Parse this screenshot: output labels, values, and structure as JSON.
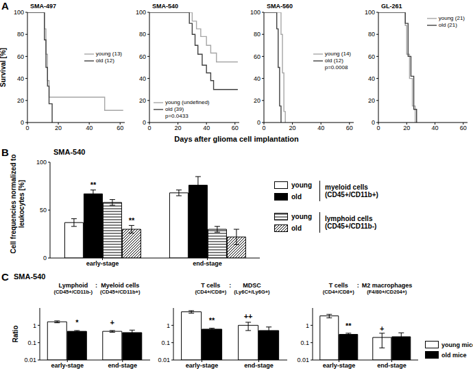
{
  "chart_data": [
    {
      "type": "line",
      "panel_label": "A",
      "title": "SMA-497",
      "y_label": "Survival [%]",
      "x_label": "Days after glioma cell implantation",
      "line_style": "step",
      "legend": "center right",
      "xlim": [
        0,
        63
      ],
      "xticks": [
        0,
        20,
        40,
        60
      ],
      "ylim": [
        0,
        100
      ],
      "yticks": [
        0,
        20,
        40,
        60,
        80,
        100
      ],
      "series": [
        {
          "name": "young (13)",
          "color": "#a6a6a6",
          "x": [
            0,
            11,
            12,
            13,
            14,
            50,
            62
          ],
          "values": [
            100,
            85,
            62,
            38,
            23,
            11,
            11
          ]
        },
        {
          "name": "old (12)",
          "color": "#404040",
          "x": [
            0,
            11,
            12,
            13,
            14,
            16
          ],
          "values": [
            100,
            75,
            50,
            33,
            17,
            0
          ]
        }
      ]
    },
    {
      "type": "line",
      "title": "SMA-540",
      "line_style": "step",
      "legend": "lower left",
      "annotation": "p=0.0433",
      "xlim": [
        0,
        63
      ],
      "xticks": [
        0,
        20,
        40,
        60
      ],
      "ylim": [
        0,
        100
      ],
      "yticks": [
        0,
        20,
        40,
        60,
        80,
        100
      ],
      "series": [
        {
          "name": "young (undefined)",
          "color": "#a6a6a6",
          "x": [
            0,
            30,
            33,
            36,
            40,
            43,
            47,
            62
          ],
          "values": [
            100,
            92,
            85,
            78,
            70,
            63,
            55,
            55
          ]
        },
        {
          "name": "old (39)",
          "color": "#404040",
          "x": [
            0,
            28,
            30,
            32,
            34,
            37,
            40,
            43,
            45,
            62
          ],
          "values": [
            100,
            90,
            80,
            70,
            62,
            52,
            45,
            38,
            30,
            30
          ]
        }
      ]
    },
    {
      "type": "line",
      "title": "SMA-560",
      "line_style": "step",
      "legend": "center right",
      "annotation": "p=0.0008",
      "xlim": [
        0,
        63
      ],
      "xticks": [
        0,
        20,
        40,
        60
      ],
      "ylim": [
        0,
        100
      ],
      "yticks": [
        0,
        20,
        40,
        60,
        80,
        100
      ],
      "series": [
        {
          "name": "young (14)",
          "color": "#a6a6a6",
          "x": [
            0,
            12,
            13,
            14,
            15
          ],
          "values": [
            100,
            80,
            45,
            10,
            0
          ]
        },
        {
          "name": "old (12)",
          "color": "#404040",
          "x": [
            0,
            9,
            10,
            11,
            12
          ],
          "values": [
            100,
            85,
            50,
            15,
            0
          ]
        }
      ]
    },
    {
      "type": "line",
      "title": "GL-261",
      "line_style": "step",
      "legend": "upper right",
      "xlim": [
        0,
        63
      ],
      "xticks": [
        0,
        20,
        40,
        60
      ],
      "ylim": [
        0,
        100
      ],
      "yticks": [
        0,
        20,
        40,
        60,
        80,
        100
      ],
      "series": [
        {
          "name": "young (21)",
          "color": "#a6a6a6",
          "x": [
            0,
            19,
            20,
            22,
            24,
            26
          ],
          "values": [
            100,
            88,
            62,
            40,
            15,
            0
          ]
        },
        {
          "name": "old (21)",
          "color": "#404040",
          "x": [
            0,
            19,
            21,
            23,
            25,
            27
          ],
          "values": [
            100,
            90,
            60,
            42,
            12,
            0
          ]
        }
      ]
    },
    {
      "type": "bar",
      "panel_label": "B",
      "title": "SMA-540",
      "y_label": "Cell frequencies normalized to leukocytes [%]",
      "categories": [
        "early-stage",
        "end-stage"
      ],
      "ylim": [
        0,
        100
      ],
      "yticks": [
        0,
        50,
        100
      ],
      "series": [
        {
          "name": "young",
          "group": "myeloid cells",
          "group_markers": "(CD45+/CD11b+)",
          "color": "#ffffff",
          "values": [
            37,
            68
          ],
          "errors": [
            4,
            3
          ]
        },
        {
          "name": "old",
          "group": "myeloid cells",
          "group_markers": "(CD45+/CD11b+)",
          "color": "#000000",
          "values": [
            67,
            76
          ],
          "errors": [
            4,
            9
          ],
          "annotations": [
            "**",
            null
          ]
        },
        {
          "name": "young",
          "group": "lymphoid cells",
          "group_markers": "(CD45+/CD11b-)",
          "color": "#000000",
          "marker": "hatch-horizontal",
          "values": [
            58,
            30
          ],
          "errors": [
            3,
            3
          ]
        },
        {
          "name": "old",
          "group": "lymphoid cells",
          "group_markers": "(CD45+/CD11b-)",
          "color": "#000000",
          "marker": "hatch-diagonal",
          "values": [
            30,
            22
          ],
          "errors": [
            4,
            8
          ],
          "annotations": [
            "**",
            null
          ]
        }
      ]
    },
    {
      "type": "bar",
      "log": "y",
      "panel_label": "C",
      "panel_title": "SMA-540",
      "y_label": "Ratio",
      "title": {
        "numerator": "Lymphoid",
        "separator": ":",
        "denominator": "Myeloid cells"
      },
      "subtitle": {
        "numerator": "(CD45+/CD11b-)",
        "denominator": "(CD45+/CD11b+)"
      },
      "categories": [
        "early-stage",
        "end-stage"
      ],
      "ylim": [
        0.01,
        10
      ],
      "yticks": [
        0.01,
        0.1,
        1
      ],
      "series": [
        {
          "name": "young mice",
          "color": "#ffffff",
          "values": [
            1.6,
            0.45
          ],
          "errors": [
            0.2,
            0.05
          ],
          "annotations": [
            null,
            "+"
          ]
        },
        {
          "name": "old mice",
          "color": "#000000",
          "values": [
            0.45,
            0.38
          ],
          "errors": [
            0.05,
            0.15
          ],
          "annotations": [
            "*",
            null
          ]
        }
      ]
    },
    {
      "type": "bar",
      "log": "y",
      "title": {
        "numerator": "T cells",
        "separator": ":",
        "denominator": "MDSC"
      },
      "subtitle": {
        "numerator": "(CD4+/CD8+)",
        "denominator": "(Ly6C+/Ly6G+)"
      },
      "categories": [
        "early-stage",
        "end-stage"
      ],
      "ylim": [
        0.01,
        10
      ],
      "yticks": [
        0.01,
        0.1,
        1
      ],
      "series": [
        {
          "name": "young mice",
          "color": "#ffffff",
          "values": [
            6,
            1.0
          ],
          "errors": [
            1.0,
            0.5
          ],
          "annotations": [
            null,
            "++"
          ]
        },
        {
          "name": "old mice",
          "color": "#000000",
          "values": [
            0.6,
            0.5
          ],
          "errors": [
            0.08,
            0.3
          ],
          "annotations": [
            "**",
            null
          ]
        }
      ]
    },
    {
      "type": "bar",
      "log": "y",
      "legend": "lower right",
      "title": {
        "numerator": "T cells",
        "separator": ":",
        "denominator": "M2 macrophages"
      },
      "subtitle": {
        "numerator": "(CD4+/CD8+)",
        "denominator": "(F4/80+/CD204+)"
      },
      "categories": [
        "early-stage",
        "end-stage"
      ],
      "ylim": [
        0.01,
        10
      ],
      "yticks": [
        0.01,
        0.1,
        1
      ],
      "series": [
        {
          "name": "young mice",
          "color": "#ffffff",
          "values": [
            3.5,
            0.2
          ],
          "errors": [
            0.8,
            0.15
          ],
          "annotations": [
            null,
            "+"
          ]
        },
        {
          "name": "old mice",
          "color": "#000000",
          "values": [
            0.3,
            0.22
          ],
          "errors": [
            0.05,
            0.15
          ],
          "annotations": [
            "**",
            null
          ]
        }
      ]
    }
  ]
}
